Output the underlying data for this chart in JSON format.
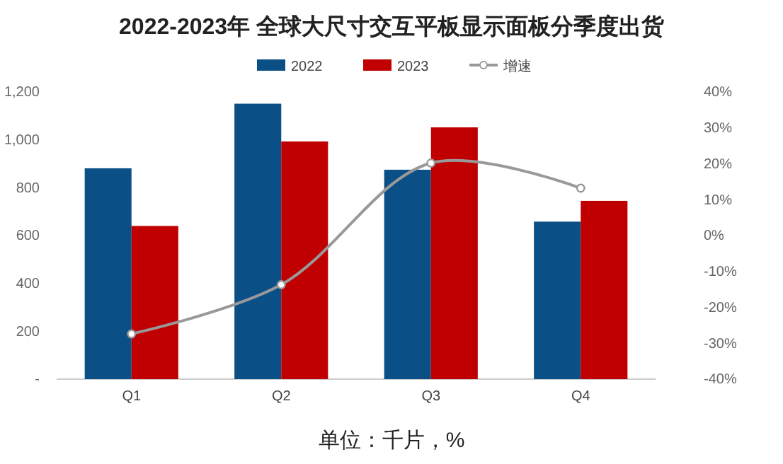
{
  "chart_data": {
    "type": "bar",
    "title": "2022-2023年 全球大尺寸交互平板显示面板分季度出货",
    "categories": [
      "Q1",
      "Q2",
      "Q3",
      "Q4"
    ],
    "series": [
      {
        "name": "2022",
        "color": "#0b4f87",
        "values": [
          881,
          1151,
          875,
          658
        ]
      },
      {
        "name": "2023",
        "color": "#c00000",
        "values": [
          640,
          993,
          1052,
          745
        ]
      },
      {
        "name": "增速",
        "type": "line",
        "axis": "y2",
        "color": "#999999",
        "marker": "circle",
        "values": [
          -27.4,
          -13.7,
          20.2,
          13.2
        ]
      }
    ],
    "ylim": [
      0,
      1200
    ],
    "yticks": [
      {
        "value": 0,
        "label": "-"
      },
      {
        "value": 200,
        "label": "200"
      },
      {
        "value": 400,
        "label": "400"
      },
      {
        "value": 600,
        "label": "600"
      },
      {
        "value": 800,
        "label": "800"
      },
      {
        "value": 1000,
        "label": "1,000"
      },
      {
        "value": 1200,
        "label": "1,200"
      }
    ],
    "y2lim": [
      -40,
      40
    ],
    "y2ticks": [
      {
        "value": -40,
        "label": "-40%"
      },
      {
        "value": -30,
        "label": "-30%"
      },
      {
        "value": -20,
        "label": "-20%"
      },
      {
        "value": -10,
        "label": "-10%"
      },
      {
        "value": 0,
        "label": "0%"
      },
      {
        "value": 10,
        "label": "10%"
      },
      {
        "value": 20,
        "label": "20%"
      },
      {
        "value": 30,
        "label": "30%"
      },
      {
        "value": 40,
        "label": "40%"
      }
    ],
    "grid": false,
    "legend": "top",
    "annotations": [
      "单位：千片，%"
    ]
  }
}
